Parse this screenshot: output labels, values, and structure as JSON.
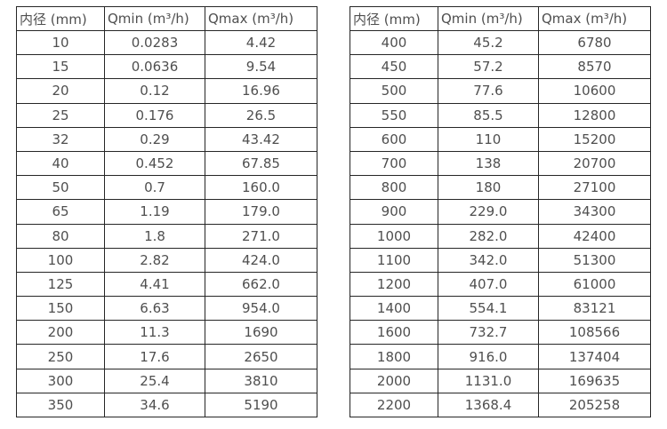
{
  "colors": {
    "border": "#262626",
    "text": "#4f4f4f",
    "background": "#ffffff"
  },
  "tables": [
    {
      "name": "flow-table-small-diameters",
      "headers": [
        "内径 (mm)",
        "Qmin (m³/h)",
        "Qmax (m³/h)"
      ],
      "rows": [
        [
          "10",
          "0.0283",
          "4.42"
        ],
        [
          "15",
          "0.0636",
          "9.54"
        ],
        [
          "20",
          "0.12",
          "16.96"
        ],
        [
          "25",
          "0.176",
          "26.5"
        ],
        [
          "32",
          "0.29",
          "43.42"
        ],
        [
          "40",
          "0.452",
          "67.85"
        ],
        [
          "50",
          "0.7",
          "160.0"
        ],
        [
          "65",
          "1.19",
          "179.0"
        ],
        [
          "80",
          "1.8",
          "271.0"
        ],
        [
          "100",
          "2.82",
          "424.0"
        ],
        [
          "125",
          "4.41",
          "662.0"
        ],
        [
          "150",
          "6.63",
          "954.0"
        ],
        [
          "200",
          "11.3",
          "1690"
        ],
        [
          "250",
          "17.6",
          "2650"
        ],
        [
          "300",
          "25.4",
          "3810"
        ],
        [
          "350",
          "34.6",
          "5190"
        ]
      ]
    },
    {
      "name": "flow-table-large-diameters",
      "headers": [
        "内径 (mm)",
        "Qmin (m³/h)",
        "Qmax (m³/h)"
      ],
      "rows": [
        [
          "400",
          "45.2",
          "6780"
        ],
        [
          "450",
          "57.2",
          "8570"
        ],
        [
          "500",
          "77.6",
          "10600"
        ],
        [
          "550",
          "85.5",
          "12800"
        ],
        [
          "600",
          "110",
          "15200"
        ],
        [
          "700",
          "138",
          "20700"
        ],
        [
          "800",
          "180",
          "27100"
        ],
        [
          "900",
          "229.0",
          "34300"
        ],
        [
          "1000",
          "282.0",
          "42400"
        ],
        [
          "1100",
          "342.0",
          "51300"
        ],
        [
          "1200",
          "407.0",
          "61000"
        ],
        [
          "1400",
          "554.1",
          "83121"
        ],
        [
          "1600",
          "732.7",
          "108566"
        ],
        [
          "1800",
          "916.0",
          "137404"
        ],
        [
          "2000",
          "1131.0",
          "169635"
        ],
        [
          "2200",
          "1368.4",
          "205258"
        ]
      ]
    }
  ]
}
